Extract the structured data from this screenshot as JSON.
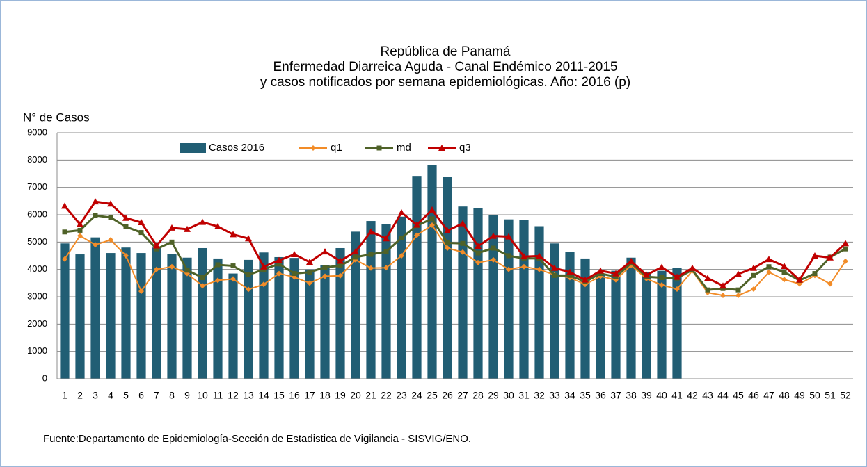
{
  "chart_data": {
    "type": "bar-line",
    "title": [
      "República de Panamá",
      "Enfermedad Diarreica Aguda - Canal Endémico 2011-2015",
      "y casos notificados por semana epidemiológicas.  Año: 2016 (p)"
    ],
    "ylabel": "N° de Casos",
    "source": "Fuente:Departamento de Epidemiología-Sección de Estadistica de Vigilancia - SISVIG/ENO.",
    "categories": [
      1,
      2,
      3,
      4,
      5,
      6,
      7,
      8,
      9,
      10,
      11,
      12,
      13,
      14,
      15,
      16,
      17,
      18,
      19,
      20,
      21,
      22,
      23,
      24,
      25,
      26,
      27,
      28,
      29,
      30,
      31,
      32,
      33,
      34,
      35,
      36,
      37,
      38,
      39,
      40,
      41,
      42,
      43,
      44,
      45,
      46,
      47,
      48,
      49,
      50,
      51,
      52
    ],
    "ylim": [
      0,
      9000
    ],
    "yticks": [
      0,
      1000,
      2000,
      3000,
      4000,
      5000,
      6000,
      7000,
      8000,
      9000
    ],
    "grid": true,
    "series": [
      {
        "name": "Casos 2016",
        "type": "bar",
        "color": "#215e74",
        "values": [
          4950,
          4550,
          5170,
          4600,
          4800,
          4600,
          4800,
          4560,
          4430,
          4780,
          4400,
          3850,
          4350,
          4620,
          4450,
          4420,
          4000,
          4150,
          4780,
          5380,
          5770,
          5660,
          5930,
          7420,
          7820,
          7380,
          6300,
          6250,
          5980,
          5830,
          5800,
          5580,
          4950,
          4640,
          4400,
          3850,
          3950,
          4430,
          3900,
          3950,
          4050,
          null,
          null,
          null,
          null,
          null,
          null,
          null,
          null,
          null,
          null,
          null
        ]
      },
      {
        "name": "q1",
        "type": "line",
        "marker": "diamond",
        "color": "#f28c28",
        "values": [
          4380,
          5230,
          4900,
          5080,
          4500,
          3200,
          4000,
          4100,
          3850,
          3400,
          3600,
          3650,
          3270,
          3450,
          3850,
          3720,
          3500,
          3750,
          3770,
          4350,
          4050,
          4060,
          4500,
          5250,
          5620,
          4780,
          4630,
          4250,
          4350,
          4000,
          4100,
          4000,
          3800,
          3700,
          3450,
          3750,
          3620,
          4150,
          3660,
          3430,
          3280,
          3950,
          3150,
          3050,
          3050,
          3280,
          3900,
          3630,
          3470,
          3780,
          3470,
          4300
        ]
      },
      {
        "name": "md",
        "type": "line",
        "marker": "square",
        "color": "#4f6228",
        "values": [
          5370,
          5430,
          5970,
          5900,
          5560,
          5350,
          4750,
          5000,
          3970,
          3700,
          4170,
          4130,
          3800,
          4000,
          4200,
          3850,
          3900,
          4080,
          4130,
          4450,
          4550,
          4650,
          5150,
          5600,
          5850,
          4970,
          4950,
          4600,
          4780,
          4500,
          4400,
          4400,
          3780,
          3780,
          3550,
          3850,
          3730,
          4230,
          3730,
          3700,
          3680,
          3980,
          3250,
          3300,
          3250,
          3780,
          4100,
          3900,
          3600,
          3850,
          4450,
          4750
        ]
      },
      {
        "name": "q3",
        "type": "line",
        "marker": "triangle",
        "color": "#c00000",
        "values": [
          6320,
          5650,
          6480,
          6400,
          5880,
          5720,
          4870,
          5520,
          5470,
          5730,
          5570,
          5280,
          5130,
          4100,
          4330,
          4550,
          4270,
          4650,
          4310,
          4650,
          5380,
          5130,
          6080,
          5630,
          6180,
          5420,
          5680,
          4850,
          5220,
          5200,
          4470,
          4490,
          4050,
          3900,
          3620,
          3950,
          3850,
          4300,
          3800,
          4080,
          3720,
          4050,
          3680,
          3400,
          3830,
          4050,
          4370,
          4120,
          3620,
          4500,
          4430,
          4950
        ]
      }
    ]
  }
}
